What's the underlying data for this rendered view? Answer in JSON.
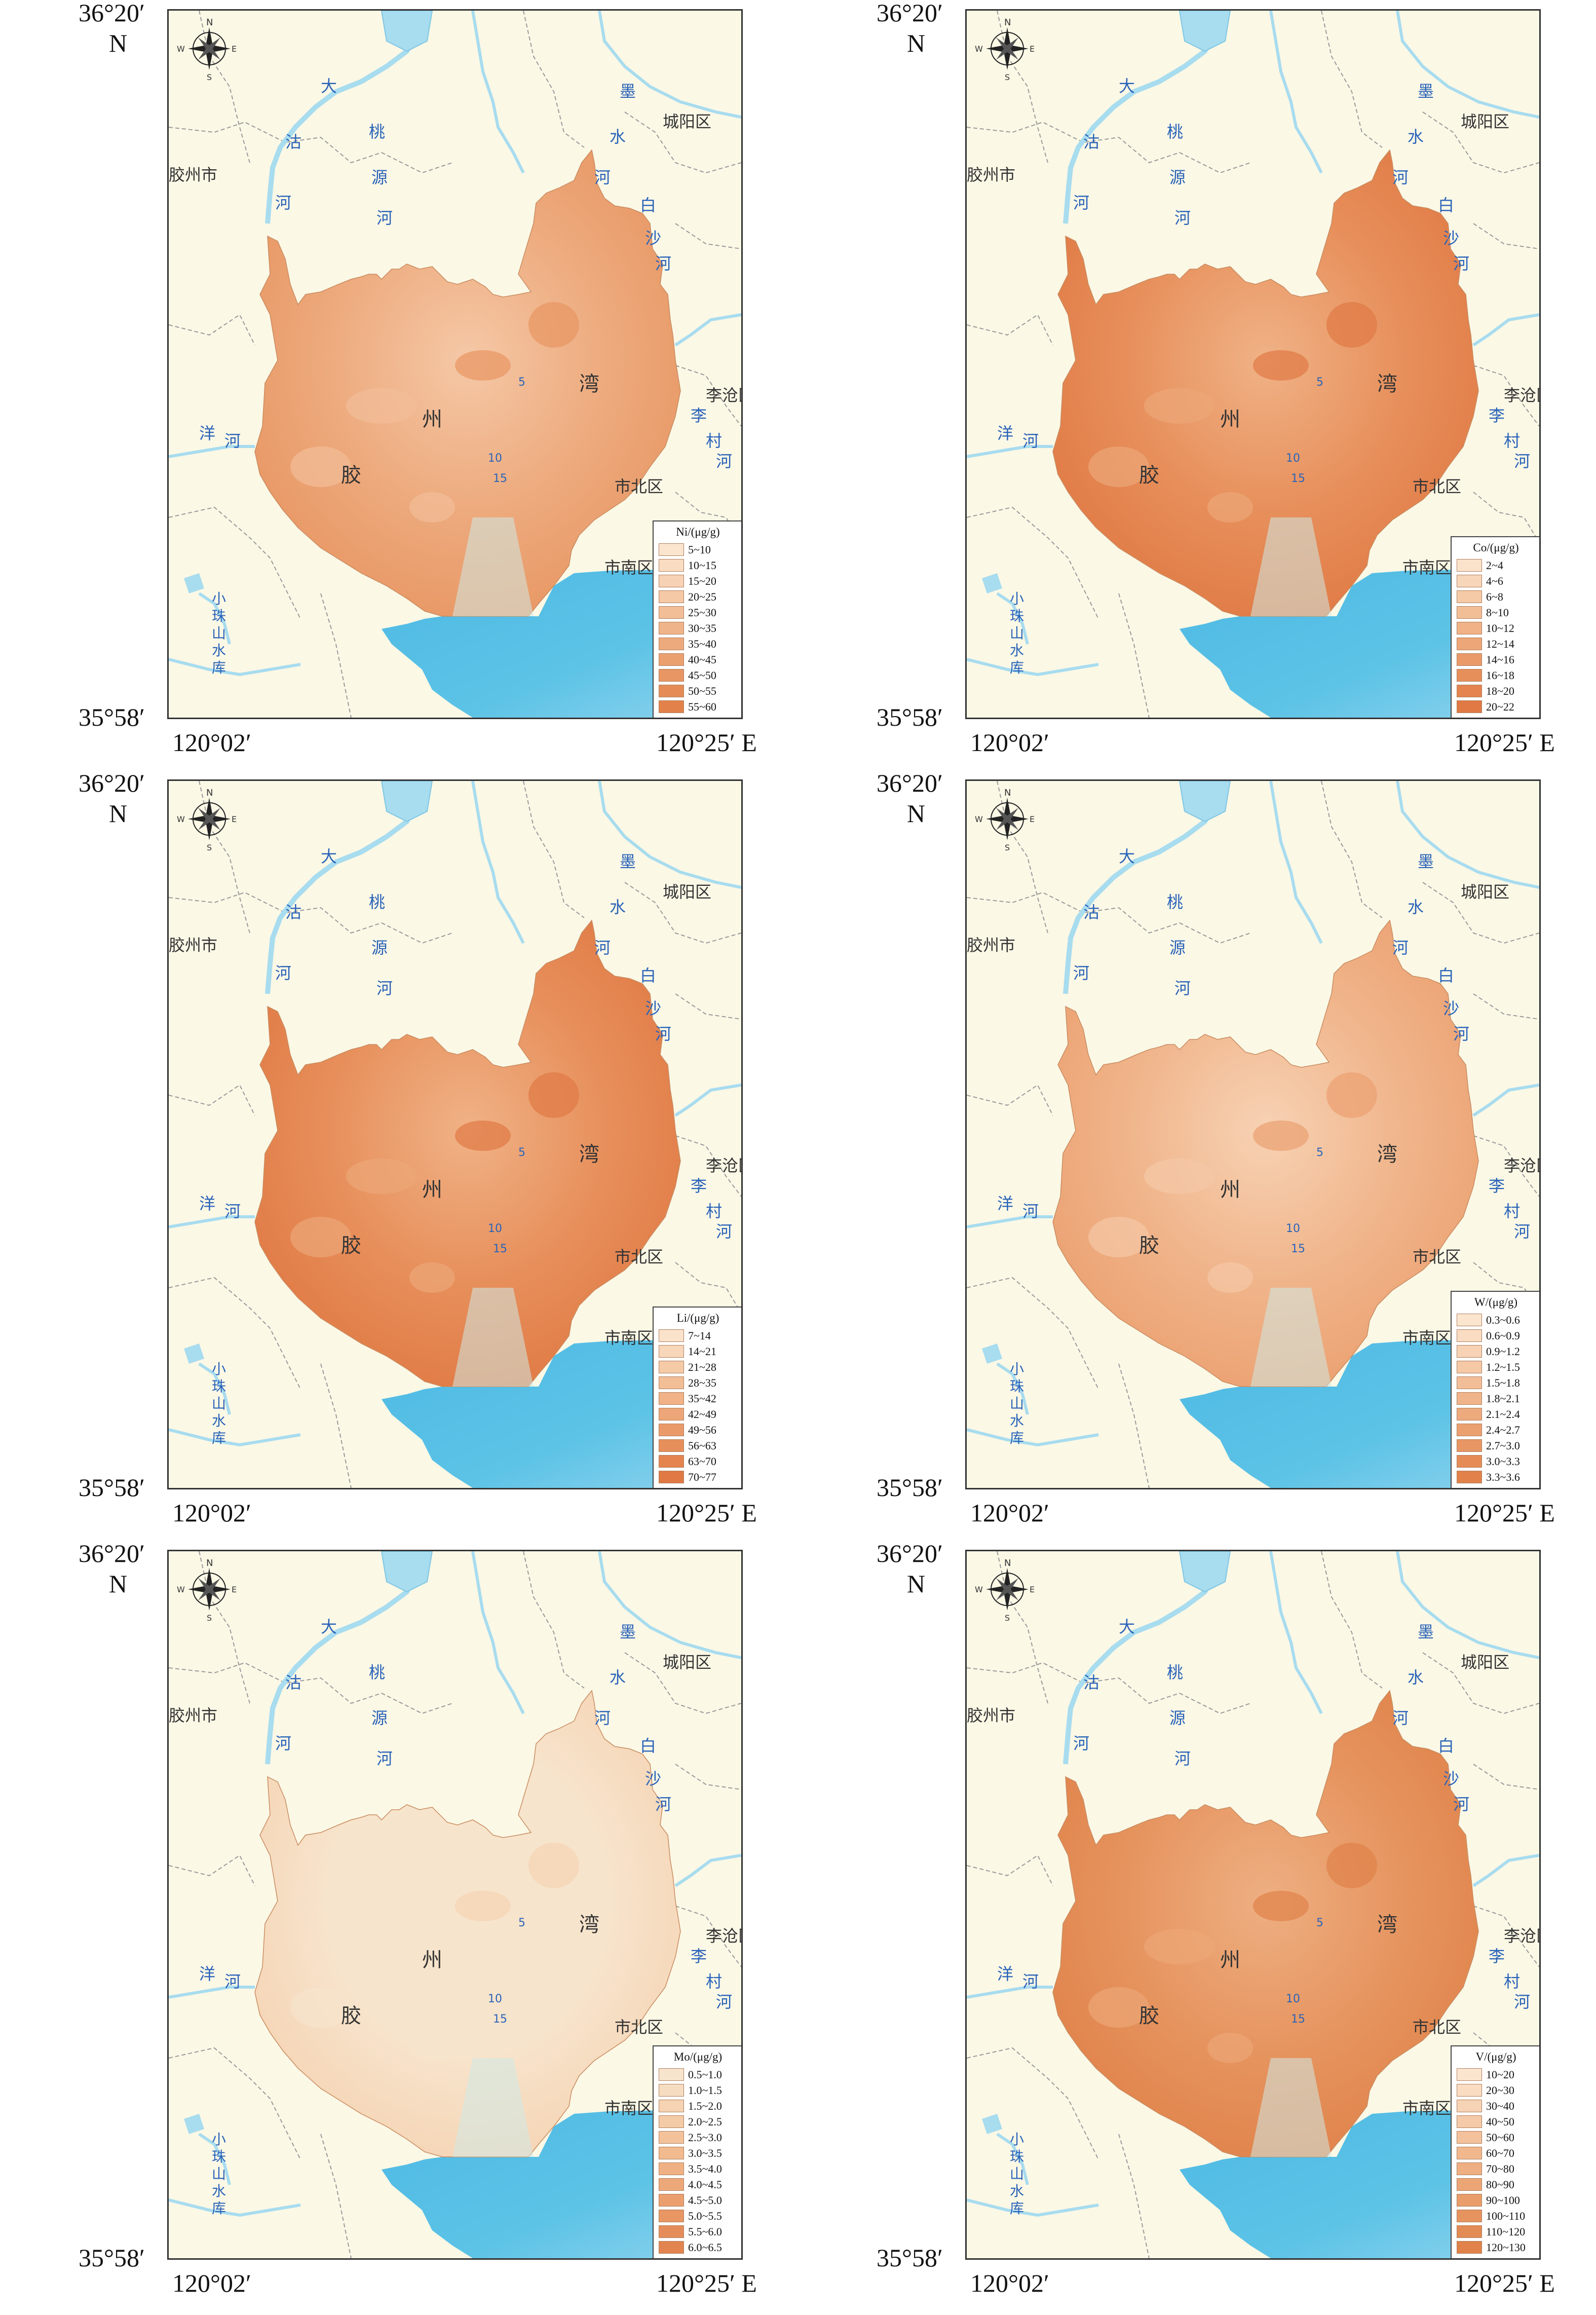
{
  "coordinates": {
    "lat_top": "36°20′",
    "lat_top_hemi": "N",
    "lat_bottom": "35°58′",
    "lon_left": "120°02′",
    "lon_right": "120°25′ E"
  },
  "compass": {
    "n": "N",
    "s": "S",
    "e": "E",
    "w": "W"
  },
  "place_labels": {
    "chengyang": "城阳区",
    "licang": "李沧区",
    "shibei": "市北区",
    "shinan": "市南区",
    "jiaozhou_city": "胶州市",
    "reservoir": "小珠山水库"
  },
  "water_labels": {
    "dagu_river": [
      "大",
      "沽",
      "河"
    ],
    "taoyuan_river": [
      "桃",
      "源",
      "河"
    ],
    "moshui_river": [
      "墨",
      "水",
      "河"
    ],
    "baisha_river": [
      "白",
      "沙",
      "河"
    ],
    "yang_river": [
      "洋",
      "河"
    ],
    "licun_river": [
      "李",
      "村",
      "河"
    ],
    "bay_name": [
      "胶",
      "州",
      "湾"
    ],
    "depth_contours": [
      "5",
      "10",
      "15"
    ]
  },
  "colors": {
    "land": "#fbf8e6",
    "sea": "#5cc3e6",
    "river": "#a8dcef",
    "boundary": "#9a9a9a"
  },
  "panels": [
    {
      "element": "Ni",
      "legend_title": "Ni/(μg/g)",
      "dominant_class_index": 6,
      "classes": [
        {
          "label": "5~10",
          "color": "#fbe5cf"
        },
        {
          "label": "10~15",
          "color": "#f9dcc2"
        },
        {
          "label": "15~20",
          "color": "#f7d2b4"
        },
        {
          "label": "20~25",
          "color": "#f5c8a6"
        },
        {
          "label": "25~30",
          "color": "#f2be98"
        },
        {
          "label": "30~35",
          "color": "#f0b48a"
        },
        {
          "label": "35~40",
          "color": "#edaa7d"
        },
        {
          "label": "40~45",
          "color": "#eba070"
        },
        {
          "label": "45~50",
          "color": "#e89663"
        },
        {
          "label": "50~55",
          "color": "#e58c56"
        },
        {
          "label": "55~60",
          "color": "#e2824a"
        }
      ]
    },
    {
      "element": "Co",
      "legend_title": "Co/(μg/g)",
      "dominant_class_index": 7,
      "classes": [
        {
          "label": "2~4",
          "color": "#fbe2cb"
        },
        {
          "label": "4~6",
          "color": "#f8d6b9"
        },
        {
          "label": "6~8",
          "color": "#f5caa7"
        },
        {
          "label": "8~10",
          "color": "#f2be96"
        },
        {
          "label": "10~12",
          "color": "#f0b286"
        },
        {
          "label": "12~14",
          "color": "#eda677"
        },
        {
          "label": "14~16",
          "color": "#ea9a69"
        },
        {
          "label": "16~18",
          "color": "#e78f5b"
        },
        {
          "label": "18~20",
          "color": "#e4844f"
        },
        {
          "label": "20~22",
          "color": "#e07944"
        }
      ]
    },
    {
      "element": "Li",
      "legend_title": "Li/(μg/g)",
      "dominant_class_index": 7,
      "classes": [
        {
          "label": "7~14",
          "color": "#fbe2cb"
        },
        {
          "label": "14~21",
          "color": "#f8d6b9"
        },
        {
          "label": "21~28",
          "color": "#f5caa7"
        },
        {
          "label": "28~35",
          "color": "#f2be96"
        },
        {
          "label": "35~42",
          "color": "#f0b286"
        },
        {
          "label": "42~49",
          "color": "#eda677"
        },
        {
          "label": "49~56",
          "color": "#ea9a69"
        },
        {
          "label": "56~63",
          "color": "#e78f5b"
        },
        {
          "label": "63~70",
          "color": "#e4844f"
        },
        {
          "label": "70~77",
          "color": "#e07944"
        }
      ]
    },
    {
      "element": "W",
      "legend_title": "W/(μg/g)",
      "dominant_class_index": 5,
      "classes": [
        {
          "label": "0.3~0.6",
          "color": "#fbe5cf"
        },
        {
          "label": "0.6~0.9",
          "color": "#f9dcc2"
        },
        {
          "label": "0.9~1.2",
          "color": "#f7d2b4"
        },
        {
          "label": "1.2~1.5",
          "color": "#f5c8a6"
        },
        {
          "label": "1.5~1.8",
          "color": "#f2be98"
        },
        {
          "label": "1.8~2.1",
          "color": "#f0b48a"
        },
        {
          "label": "2.1~2.4",
          "color": "#edaa7d"
        },
        {
          "label": "2.4~2.7",
          "color": "#eba070"
        },
        {
          "label": "2.7~3.0",
          "color": "#e89663"
        },
        {
          "label": "3.0~3.3",
          "color": "#e58c56"
        },
        {
          "label": "3.3~3.6",
          "color": "#e2824a"
        }
      ]
    },
    {
      "element": "Mo",
      "legend_title": "Mo/(μg/g)",
      "dominant_class_index": 0,
      "classes": [
        {
          "label": "0.5~1.0",
          "color": "#f7e4cc"
        },
        {
          "label": "1.0~1.5",
          "color": "#f6dcc0"
        },
        {
          "label": "1.5~2.0",
          "color": "#f5d3b3"
        },
        {
          "label": "2.0~2.5",
          "color": "#f4cba7"
        },
        {
          "label": "2.5~3.0",
          "color": "#f3c29b"
        },
        {
          "label": "3.0~3.5",
          "color": "#f1ba8f"
        },
        {
          "label": "3.5~4.0",
          "color": "#efb184"
        },
        {
          "label": "4.0~4.5",
          "color": "#eda879"
        },
        {
          "label": "4.5~5.0",
          "color": "#eb9f6e"
        },
        {
          "label": "5.0~5.5",
          "color": "#e89664"
        },
        {
          "label": "5.5~6.0",
          "color": "#e58d5a"
        },
        {
          "label": "6.0~6.5",
          "color": "#e28450"
        }
      ]
    },
    {
      "element": "V",
      "legend_title": "V/(μg/g)",
      "dominant_class_index": 9,
      "classes": [
        {
          "label": "10~20",
          "color": "#fbe5cf"
        },
        {
          "label": "20~30",
          "color": "#f9dcc2"
        },
        {
          "label": "30~40",
          "color": "#f7d3b5"
        },
        {
          "label": "40~50",
          "color": "#f5caa8"
        },
        {
          "label": "50~60",
          "color": "#f3c19b"
        },
        {
          "label": "60~70",
          "color": "#f1b88e"
        },
        {
          "label": "70~80",
          "color": "#eeaf82"
        },
        {
          "label": "80~90",
          "color": "#eca676"
        },
        {
          "label": "90~100",
          "color": "#e99d6a"
        },
        {
          "label": "100~110",
          "color": "#e6945f"
        },
        {
          "label": "110~120",
          "color": "#e38b54"
        },
        {
          "label": "120~130",
          "color": "#e0824a"
        }
      ]
    }
  ]
}
